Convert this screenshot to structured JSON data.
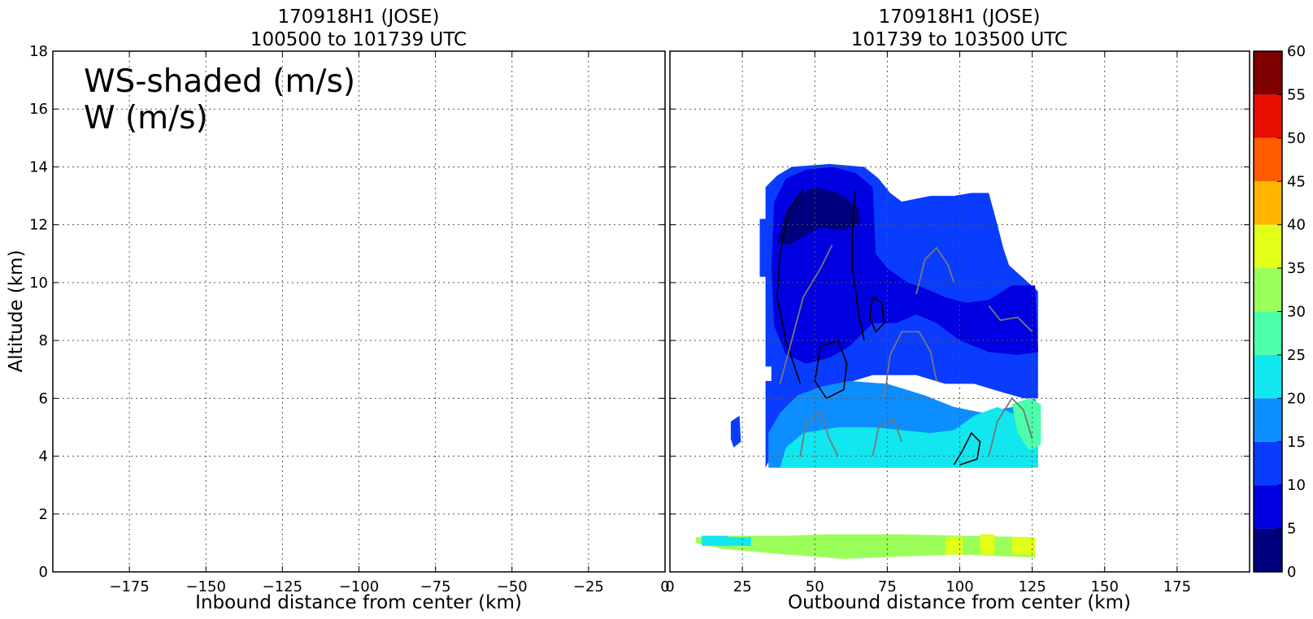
{
  "panels": [
    {
      "title_line1": "170918H1 (JOSE)",
      "title_line2": "100500 to 101739 UTC",
      "xlabel": "Inbound distance from center (km)",
      "ylabel": "Altitude (km)",
      "annotation_line1": "WS-shaded (m/s)",
      "annotation_line2": "W (m/s)"
    },
    {
      "title_line1": "170918H1 (JOSE)",
      "title_line2": "101739 to 103500 UTC",
      "xlabel": "Outbound distance from center (km)"
    }
  ],
  "colorbar": {
    "ticks": [
      "0",
      "5",
      "10",
      "15",
      "20",
      "25",
      "30",
      "35",
      "40",
      "45",
      "50",
      "55",
      "60"
    ],
    "colors": [
      "#00007f",
      "#0000e0",
      "#0a3cff",
      "#0d8eff",
      "#11e7ef",
      "#4cffaa",
      "#9bff5a",
      "#e1ff17",
      "#ffb500",
      "#ff5c00",
      "#e80e00",
      "#7f0000"
    ]
  },
  "chart_data": [
    {
      "type": "heatmap",
      "title": "170918H1 (JOSE) 100500 to 101739 UTC",
      "xlabel": "Inbound distance from center (km)",
      "ylabel": "Altitude (km)",
      "xlim": [
        -200,
        0
      ],
      "ylim": [
        0,
        18
      ],
      "xticks": [
        -175,
        -150,
        -125,
        -100,
        -75,
        -50,
        -25,
        0
      ],
      "xtick_labels": [
        "−175",
        "−150",
        "−125",
        "−100",
        "−75",
        "−50",
        "−25",
        "0"
      ],
      "yticks": [
        0,
        2,
        4,
        6,
        8,
        10,
        12,
        14,
        16,
        18
      ],
      "grid": true,
      "data": "none (empty panel)"
    },
    {
      "type": "heatmap",
      "title": "170918H1 (JOSE) 101739 to 103500 UTC",
      "xlabel": "Outbound distance from center (km)",
      "xlim": [
        0,
        200
      ],
      "ylim": [
        0,
        18
      ],
      "xticks": [
        0,
        25,
        50,
        75,
        100,
        125,
        150,
        175
      ],
      "xtick_labels": [
        "0",
        "25",
        "50",
        "75",
        "100",
        "125",
        "150",
        "175"
      ],
      "yticks": [
        0,
        2,
        4,
        6,
        8,
        10,
        12,
        14,
        16,
        18
      ],
      "grid": true,
      "shaded_variable": "WS (m/s)",
      "contour_variable": "W (m/s)",
      "color_levels": [
        0,
        5,
        10,
        15,
        20,
        25,
        30,
        35,
        40,
        45,
        50,
        55,
        60
      ],
      "shaded_regions": [
        {
          "range_ms": "10-15",
          "outline": [
            [
              33,
              3.6
            ],
            [
              33,
              10.2
            ],
            [
              31,
              10.2
            ],
            [
              31,
              12.2
            ],
            [
              33,
              12.2
            ],
            [
              33,
              13.3
            ],
            [
              37,
              13.7
            ],
            [
              42,
              14
            ],
            [
              55,
              14.1
            ],
            [
              67,
              14
            ],
            [
              72,
              13.6
            ],
            [
              76,
              13.1
            ],
            [
              80,
              12.8
            ],
            [
              85,
              12.9
            ],
            [
              90,
              13
            ],
            [
              98,
              13
            ],
            [
              104,
              13.1
            ],
            [
              110,
              13.1
            ],
            [
              113,
              12
            ],
            [
              115,
              11.2
            ],
            [
              117,
              10.6
            ],
            [
              127,
              9.7
            ],
            [
              127,
              6
            ],
            [
              122,
              6
            ],
            [
              115,
              6.2
            ],
            [
              105,
              6.5
            ],
            [
              95,
              6.5
            ],
            [
              85,
              6.8
            ],
            [
              70,
              6.8
            ],
            [
              60,
              6.5
            ],
            [
              45,
              6
            ],
            [
              38,
              5
            ],
            [
              35,
              4
            ],
            [
              33,
              3.6
            ]
          ]
        },
        {
          "range_ms": "5-10",
          "outline": [
            [
              36,
              12.8
            ],
            [
              40,
              13.6
            ],
            [
              47,
              13.9
            ],
            [
              56,
              14
            ],
            [
              64,
              13.8
            ],
            [
              70,
              13.3
            ],
            [
              71,
              11
            ],
            [
              75,
              10.5
            ],
            [
              82,
              10
            ],
            [
              88,
              9.8
            ],
            [
              95,
              9.5
            ],
            [
              102,
              9.3
            ],
            [
              110,
              9.4
            ],
            [
              118,
              9.9
            ],
            [
              126,
              9.9
            ],
            [
              127,
              7.6
            ],
            [
              120,
              7.5
            ],
            [
              110,
              7.6
            ],
            [
              100,
              8
            ],
            [
              92,
              8.6
            ],
            [
              85,
              8.9
            ],
            [
              78,
              8.6
            ],
            [
              70,
              8.6
            ],
            [
              62,
              7.8
            ],
            [
              55,
              7.4
            ],
            [
              47,
              7.2
            ],
            [
              40,
              7.5
            ],
            [
              36,
              8.5
            ],
            [
              35,
              10.5
            ],
            [
              36,
              12.8
            ]
          ]
        },
        {
          "range_ms": "0-5",
          "outline": [
            [
              37,
              11.4
            ],
            [
              40,
              12.4
            ],
            [
              44,
              13
            ],
            [
              50,
              13.3
            ],
            [
              58,
              13.1
            ],
            [
              65,
              12.6
            ],
            [
              66,
              12.1
            ],
            [
              60,
              11.8
            ],
            [
              52,
              11.9
            ],
            [
              46,
              11.6
            ],
            [
              41,
              11.3
            ],
            [
              37,
              11.4
            ]
          ]
        },
        {
          "range_ms": "15-20",
          "outline": [
            [
              34,
              3.6
            ],
            [
              34,
              4.8
            ],
            [
              38,
              5.5
            ],
            [
              44,
              6.1
            ],
            [
              52,
              6.4
            ],
            [
              62,
              6.6
            ],
            [
              75,
              6.5
            ],
            [
              88,
              6.1
            ],
            [
              98,
              5.7
            ],
            [
              108,
              5.5
            ],
            [
              118,
              5.7
            ],
            [
              126,
              6
            ],
            [
              127,
              5.6
            ],
            [
              127,
              4.5
            ],
            [
              125,
              3.6
            ],
            [
              34,
              3.6
            ]
          ]
        },
        {
          "range_ms": "20-25",
          "outline": [
            [
              38,
              3.6
            ],
            [
              40,
              4.3
            ],
            [
              46,
              4.8
            ],
            [
              58,
              5
            ],
            [
              70,
              5
            ],
            [
              80,
              4.9
            ],
            [
              90,
              4.8
            ],
            [
              98,
              4.9
            ],
            [
              105,
              5.4
            ],
            [
              113,
              5.7
            ],
            [
              120,
              5.4
            ],
            [
              126,
              5.2
            ],
            [
              127,
              4.3
            ],
            [
              127,
              3.6
            ],
            [
              38,
              3.6
            ]
          ]
        },
        {
          "range_ms": "25-30",
          "outline": [
            [
              118,
              5.8
            ],
            [
              124,
              6
            ],
            [
              128,
              5.8
            ],
            [
              128,
              4.4
            ],
            [
              124,
              4.2
            ],
            [
              120,
              4.8
            ],
            [
              118,
              5.8
            ]
          ]
        },
        {
          "range_ms": "low-level band 30-40",
          "outline": [
            [
              9,
              1.0
            ],
            [
              18,
              0.8
            ],
            [
              40,
              0.6
            ],
            [
              60,
              0.45
            ],
            [
              85,
              0.55
            ],
            [
              100,
              0.6
            ],
            [
              112,
              0.55
            ],
            [
              126,
              0.5
            ],
            [
              126,
              1.2
            ],
            [
              100,
              1.25
            ],
            [
              80,
              1.3
            ],
            [
              55,
              1.3
            ],
            [
              40,
              1.25
            ],
            [
              20,
              1.25
            ],
            [
              9,
              1.2
            ]
          ]
        }
      ]
    }
  ]
}
